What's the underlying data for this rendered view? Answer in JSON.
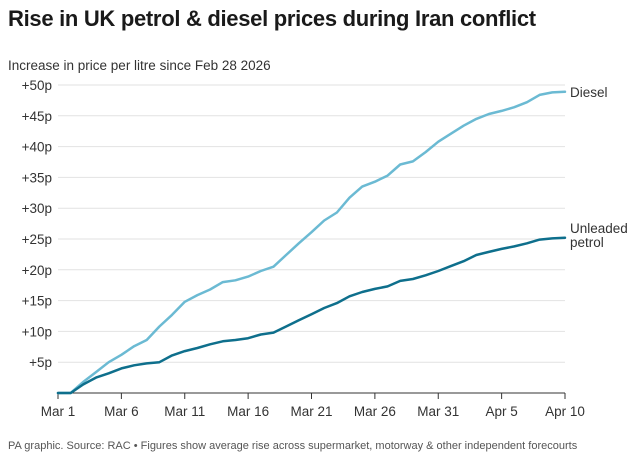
{
  "title": "Rise in UK petrol & diesel prices during Iran conflict",
  "subtitle": "Increase in price per litre since Feb 28 2026",
  "footnote": "PA graphic. Source: RAC • Figures show average rise across supermarket, motorway & other independent forecourts",
  "colors": {
    "diesel": "#6bbad3",
    "unleaded": "#0e6f8c",
    "axis": "#333333",
    "grid": "#e2e2e2"
  },
  "chart_data": {
    "type": "line",
    "title": "Rise in UK petrol & diesel prices during Iran conflict",
    "ylabel": "Increase in price per litre since Feb 28 2026",
    "xlabel": "",
    "x_tick_labels": [
      "Mar 1",
      "Mar 6",
      "Mar 11",
      "Mar 16",
      "Mar 21",
      "Mar 26",
      "Mar 31",
      "Apr 5",
      "Apr 10"
    ],
    "x_tick_days": [
      1,
      6,
      11,
      16,
      21,
      26,
      31,
      36,
      41
    ],
    "xlim": [
      1,
      41
    ],
    "y_tick_labels": [
      "+5p",
      "+10p",
      "+15p",
      "+20p",
      "+25p",
      "+30p",
      "+35p",
      "+40p",
      "+45p",
      "+50p"
    ],
    "y_tick_values": [
      5,
      10,
      15,
      20,
      25,
      30,
      35,
      40,
      45,
      50
    ],
    "ylim": [
      0,
      50
    ],
    "grid": true,
    "series": [
      {
        "name": "Diesel",
        "label_lines": [
          "Diesel"
        ],
        "color": "#6bbad3",
        "x": [
          1,
          2,
          3,
          4,
          5,
          6,
          7,
          8,
          9,
          10,
          11,
          12,
          13,
          14,
          15,
          16,
          17,
          18,
          19,
          20,
          21,
          22,
          23,
          24,
          25,
          26,
          27,
          28,
          29,
          30,
          31,
          32,
          33,
          34,
          35,
          36,
          37,
          38,
          39,
          40,
          41
        ],
        "y": [
          0,
          0,
          1.8,
          3.4,
          5.0,
          6.2,
          7.6,
          8.6,
          10.8,
          12.7,
          14.8,
          15.9,
          16.8,
          18.0,
          18.3,
          18.9,
          19.8,
          20.5,
          22.4,
          24.3,
          26.1,
          28.0,
          29.3,
          31.7,
          33.5,
          34.3,
          35.3,
          37.1,
          37.6,
          39.1,
          40.8,
          42.1,
          43.4,
          44.5,
          45.3,
          45.8,
          46.4,
          47.2,
          48.4,
          48.8,
          48.9
        ]
      },
      {
        "name": "Unleaded petrol",
        "label_lines": [
          "Unleaded",
          "petrol"
        ],
        "color": "#0e6f8c",
        "x": [
          1,
          2,
          3,
          4,
          5,
          6,
          7,
          8,
          9,
          10,
          11,
          12,
          13,
          14,
          15,
          16,
          17,
          18,
          19,
          20,
          21,
          22,
          23,
          24,
          25,
          26,
          27,
          28,
          29,
          30,
          31,
          32,
          33,
          34,
          35,
          36,
          37,
          38,
          39,
          40,
          41
        ],
        "y": [
          0,
          0,
          1.4,
          2.5,
          3.2,
          4.0,
          4.5,
          4.8,
          5.0,
          6.1,
          6.8,
          7.3,
          7.9,
          8.4,
          8.6,
          8.9,
          9.5,
          9.8,
          10.8,
          11.8,
          12.8,
          13.8,
          14.6,
          15.7,
          16.4,
          16.9,
          17.3,
          18.2,
          18.5,
          19.1,
          19.8,
          20.6,
          21.4,
          22.4,
          22.9,
          23.4,
          23.8,
          24.3,
          24.9,
          25.1,
          25.2
        ]
      }
    ]
  }
}
